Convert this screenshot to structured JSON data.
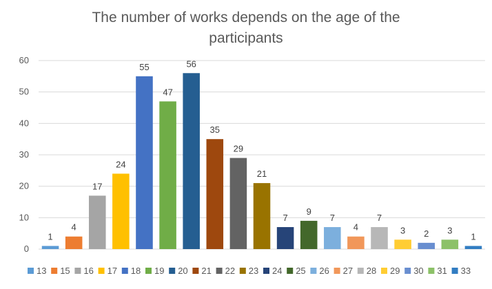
{
  "chart_data": {
    "type": "bar",
    "title": "The number of works depends on the age of the participants",
    "xlabel": "",
    "ylabel": "",
    "ylim": [
      0,
      60
    ],
    "yticks": [
      0,
      10,
      20,
      30,
      40,
      50,
      60
    ],
    "grid": true,
    "legend": "bottom",
    "series": [
      {
        "name": "13",
        "value": 1,
        "color": "#5B9BD5"
      },
      {
        "name": "15",
        "value": 4,
        "color": "#ED7D31"
      },
      {
        "name": "16",
        "value": 17,
        "color": "#A5A5A5"
      },
      {
        "name": "17",
        "value": 24,
        "color": "#FFC000"
      },
      {
        "name": "18",
        "value": 55,
        "color": "#4472C4"
      },
      {
        "name": "19",
        "value": 47,
        "color": "#70AD47"
      },
      {
        "name": "20",
        "value": 56,
        "color": "#255E91"
      },
      {
        "name": "21",
        "value": 35,
        "color": "#9E480E"
      },
      {
        "name": "22",
        "value": 29,
        "color": "#636363"
      },
      {
        "name": "23",
        "value": 21,
        "color": "#997300"
      },
      {
        "name": "24",
        "value": 7,
        "color": "#264478"
      },
      {
        "name": "25",
        "value": 9,
        "color": "#43682B"
      },
      {
        "name": "26",
        "value": 7,
        "color": "#7CAFDD"
      },
      {
        "name": "27",
        "value": 4,
        "color": "#F1975A"
      },
      {
        "name": "28",
        "value": 7,
        "color": "#B7B7B7"
      },
      {
        "name": "29",
        "value": 3,
        "color": "#FFCD33"
      },
      {
        "name": "30",
        "value": 2,
        "color": "#698ED0"
      },
      {
        "name": "31",
        "value": 3,
        "color": "#8CC168"
      },
      {
        "name": "33",
        "value": 1,
        "color": "#327DC2"
      }
    ]
  }
}
